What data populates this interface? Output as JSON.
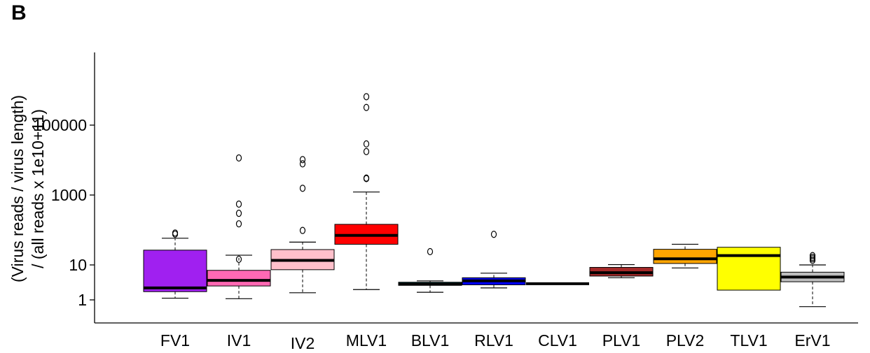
{
  "panel_label": "B",
  "chart_data": {
    "type": "boxplot",
    "ylabel_line1": "(Virus reads / virus length)",
    "ylabel_line2": "/ (all reads x 1e10+11)",
    "yscale": "log",
    "ylim": [
      0.5,
      700000
    ],
    "yticks": [
      {
        "value": 1,
        "label": "1"
      },
      {
        "value": 10,
        "label": "10"
      },
      {
        "value": 1000,
        "label": "1000"
      },
      {
        "value": 100000,
        "label": "100000"
      }
    ],
    "grid": false,
    "boxes": [
      {
        "category": "FV1",
        "color": "#a020f0",
        "whislo": 1.12,
        "q1": 1.72,
        "median": 2.2,
        "q3": 26.5,
        "whishi": 58,
        "outliers": [
          82,
          76
        ]
      },
      {
        "category": "IV1",
        "color": "#ff69b4",
        "whislo": 1.08,
        "q1": 2.5,
        "median": 3.6,
        "q3": 7.0,
        "whishi": 19,
        "outliers": [
          14.5,
          150,
          300,
          550,
          11500
        ]
      },
      {
        "category": "IV2",
        "color": "#ffc0cb",
        "whislo": 1.6,
        "q1": 7.3,
        "median": 13.5,
        "q3": 27.5,
        "whishi": 45,
        "outliers": [
          97,
          1560,
          7800,
          10300
        ]
      },
      {
        "category": "MLV1",
        "color": "#ff0000",
        "whislo": 1.97,
        "q1": 39,
        "median": 70,
        "q3": 145,
        "whishi": 1220,
        "outliers": [
          2950,
          3050,
          17500,
          29000,
          320000,
          650000
        ]
      },
      {
        "category": "BLV1",
        "color": "#00e5ee",
        "whislo": 1.65,
        "q1": 2.6,
        "median": 2.85,
        "q3": 3.2,
        "whishi": 3.5,
        "outliers": [
          24
        ]
      },
      {
        "category": "RLV1",
        "color": "#0000ff",
        "whislo": 2.2,
        "q1": 2.7,
        "median": 3.5,
        "q3": 4.3,
        "whishi": 5.8,
        "outliers": [
          75
        ]
      },
      {
        "category": "CLV1",
        "color": "#666666",
        "whislo": 2.9,
        "q1": 2.9,
        "median": 2.9,
        "q3": 2.9,
        "whishi": 2.9,
        "outliers": []
      },
      {
        "category": "PLV1",
        "color": "#a52a2a",
        "whislo": 4.3,
        "q1": 4.8,
        "median": 6.0,
        "q3": 8.5,
        "whishi": 10.2,
        "outliers": []
      },
      {
        "category": "PLV2",
        "color": "#ffa500",
        "whislo": 8.2,
        "q1": 11,
        "median": 15,
        "q3": 28,
        "whishi": 39,
        "outliers": []
      },
      {
        "category": "TLV1",
        "color": "#ffff00",
        "whislo": 1.9,
        "q1": 1.9,
        "median": 18.5,
        "q3": 32,
        "whishi": 32,
        "outliers": []
      },
      {
        "category": "ErV1",
        "color": "#bebebe",
        "whislo": 0.64,
        "q1": 3.3,
        "median": 4.5,
        "q3": 6.2,
        "whishi": 10,
        "outliers": [
          13.5,
          15,
          16.5,
          18.5
        ]
      }
    ]
  }
}
